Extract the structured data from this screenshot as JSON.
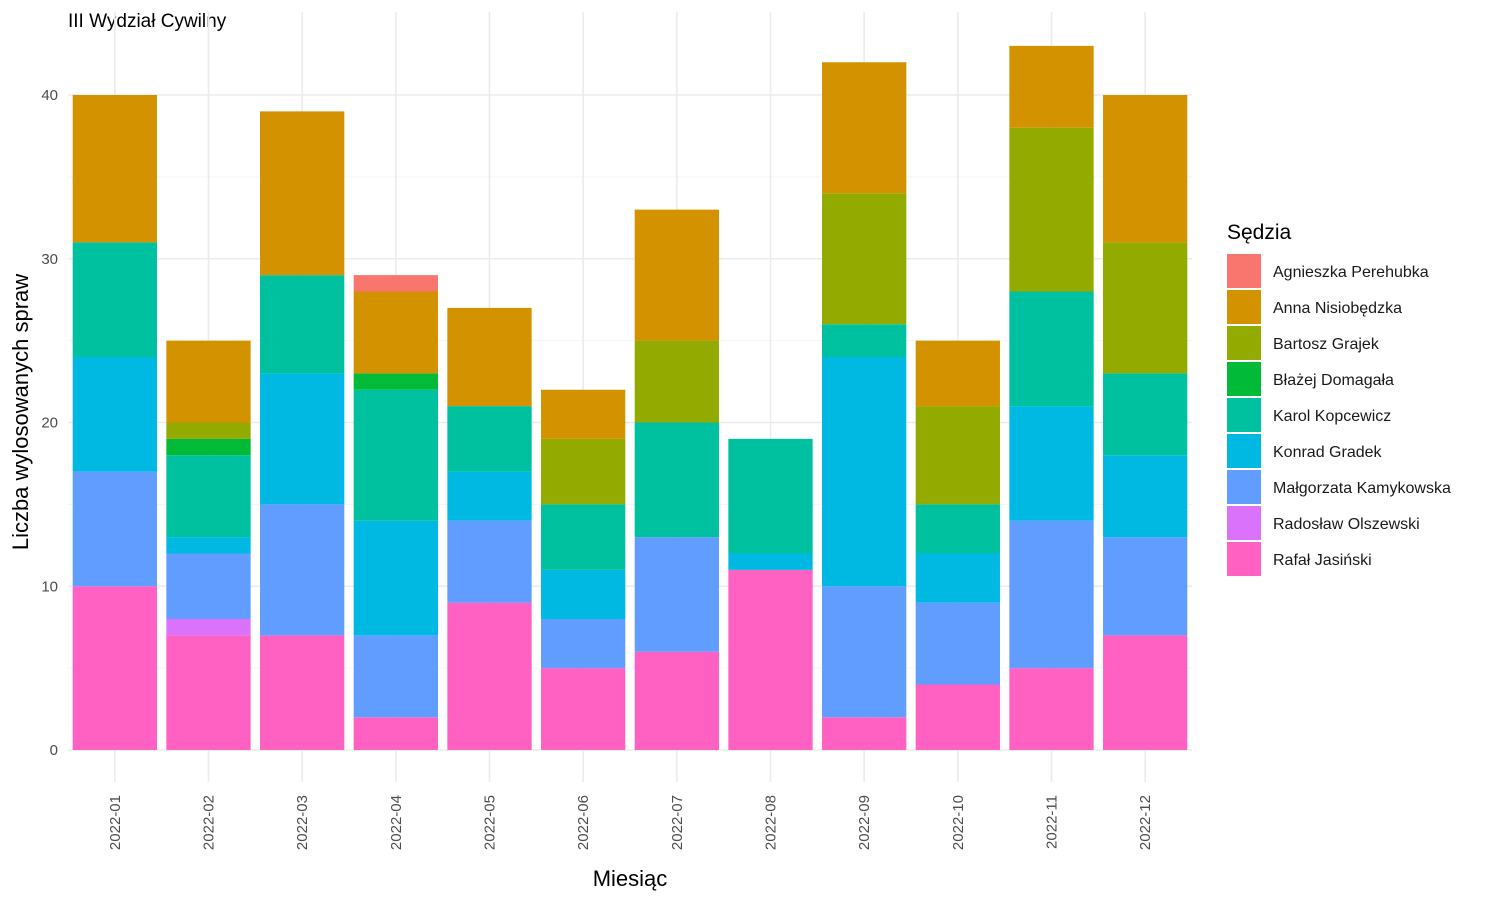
{
  "chart_data": {
    "type": "bar",
    "stacked": true,
    "title": "III Wydział Cywilny",
    "xlabel": "Miesiąc",
    "ylabel": "Liczba wylosowanych spraw",
    "ylim": [
      0,
      44
    ],
    "yticks": [
      0,
      10,
      20,
      30,
      40
    ],
    "grid": true,
    "legend_title": "Sędzia",
    "legend_position": "right",
    "categories": [
      "2022-01",
      "2022-02",
      "2022-03",
      "2022-04",
      "2022-05",
      "2022-06",
      "2022-07",
      "2022-08",
      "2022-09",
      "2022-10",
      "2022-11",
      "2022-12"
    ],
    "series": [
      {
        "name": "Agnieszka Perehubka",
        "color": "#F8766D",
        "values": [
          0,
          0,
          0,
          1,
          0,
          0,
          0,
          0,
          0,
          0,
          0,
          0
        ]
      },
      {
        "name": "Anna Nisiobędzka",
        "color": "#D39200",
        "values": [
          9,
          5,
          10,
          5,
          6,
          3,
          8,
          0,
          8,
          4,
          5,
          9
        ]
      },
      {
        "name": "Bartosz Grajek",
        "color": "#93AA00",
        "values": [
          0,
          1,
          0,
          0,
          0,
          4,
          5,
          0,
          8,
          6,
          10,
          8
        ]
      },
      {
        "name": "Błażej Domagała",
        "color": "#00BA38",
        "values": [
          0,
          1,
          0,
          1,
          0,
          0,
          0,
          0,
          0,
          0,
          0,
          0
        ]
      },
      {
        "name": "Karol Kopcewicz",
        "color": "#00C19F",
        "values": [
          7,
          5,
          6,
          8,
          4,
          4,
          7,
          7,
          2,
          3,
          7,
          5
        ]
      },
      {
        "name": "Konrad Gradek",
        "color": "#00B9E3",
        "values": [
          7,
          1,
          8,
          7,
          3,
          3,
          0,
          1,
          14,
          3,
          7,
          5
        ]
      },
      {
        "name": "Małgorzata Kamykowska",
        "color": "#619CFF",
        "values": [
          7,
          4,
          8,
          5,
          5,
          3,
          7,
          0,
          8,
          5,
          9,
          6
        ]
      },
      {
        "name": "Radosław Olszewski",
        "color": "#DB72FB",
        "values": [
          0,
          1,
          0,
          0,
          0,
          0,
          0,
          0,
          0,
          0,
          0,
          0
        ]
      },
      {
        "name": "Rafał Jasiński",
        "color": "#FF61C3",
        "values": [
          10,
          7,
          7,
          2,
          9,
          5,
          6,
          11,
          2,
          4,
          5,
          7
        ]
      }
    ]
  }
}
